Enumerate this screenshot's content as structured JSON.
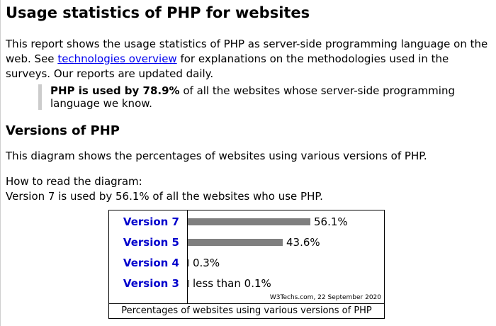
{
  "page": {
    "title": "Usage statistics of PHP for websites",
    "intro": {
      "text_before_link": "This report shows the usage statistics of PHP as server-side programming language on the web. See ",
      "link_text": "technologies overview",
      "text_after_link": " for explanations on the methodologies used in the surveys. Our reports are updated daily."
    },
    "callout": {
      "bold": "PHP is used by 78.9%",
      "rest": " of all the websites whose server-side programming language we know."
    },
    "versions_heading": "Versions of PHP",
    "diagram_description": "This diagram shows the percentages of websites using various versions of PHP.",
    "howto_title": "How to read the diagram:",
    "howto_example": "Version 7 is used by 56.1% of all the websites who use PHP."
  },
  "chart_data": {
    "type": "bar",
    "orientation": "horizontal",
    "categories": [
      "Version 7",
      "Version 5",
      "Version 4",
      "Version 3"
    ],
    "values": [
      56.1,
      43.6,
      0.3,
      0.1
    ],
    "value_labels": [
      "56.1%",
      "43.6%",
      "0.3%",
      "less than 0.1%"
    ],
    "bar_color": "#7f7f7f",
    "label_color": "#0000cc",
    "credit": "W3Techs.com, 22 September 2020",
    "caption": "Percentages of websites using various versions of PHP",
    "grid": false
  }
}
